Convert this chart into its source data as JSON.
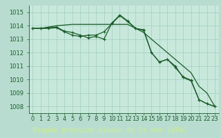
{
  "title": "Graphe pression niveau de la mer (hPa)",
  "hours": [
    0,
    1,
    2,
    3,
    4,
    5,
    6,
    7,
    8,
    9,
    10,
    11,
    12,
    13,
    14,
    15,
    16,
    17,
    18,
    19,
    20,
    21,
    22,
    23
  ],
  "line1": [
    1013.8,
    1013.8,
    1013.8,
    1013.85,
    1013.55,
    1013.3,
    1013.2,
    1013.3,
    1013.3,
    1013.55,
    1014.15,
    1014.75,
    1014.3,
    1013.8,
    1013.65,
    1012.0,
    1011.3,
    1011.5,
    1010.9,
    1010.2,
    1009.95,
    1008.5,
    1008.2,
    1008.0
  ],
  "line2": [
    1013.8,
    1013.8,
    1013.85,
    1013.9,
    1013.6,
    1013.5,
    1013.3,
    1013.1,
    1013.2,
    1013.0,
    1014.2,
    1014.8,
    1014.35,
    1013.8,
    1013.7,
    1012.0,
    1011.3,
    1011.5,
    1011.0,
    1010.15,
    1009.9,
    1008.5,
    1008.2,
    1008.0
  ],
  "line3_straight": [
    1013.8,
    1013.8,
    1013.9,
    1014.0,
    1014.05,
    1014.1,
    1014.1,
    1014.1,
    1014.1,
    1014.1,
    1014.1,
    1014.1,
    1014.1,
    1013.8,
    1013.5,
    1013.0,
    1012.5,
    1012.0,
    1011.5,
    1011.0,
    1010.5,
    1009.5,
    1009.0,
    1008.0
  ],
  "line1_has_markers": true,
  "line2_has_markers": true,
  "line3_has_markers": false,
  "ylim": [
    1007.5,
    1015.5
  ],
  "yticks": [
    1008,
    1009,
    1010,
    1011,
    1012,
    1013,
    1014,
    1015
  ],
  "bg_color": "#b8ddd0",
  "plot_bg_color": "#c8e8dc",
  "grid_color": "#9fcfbe",
  "line_color": "#1a5c28",
  "tick_label_color": "#1a5c28",
  "title_bg_color": "#4a7c4e",
  "title_fg_color": "#c8e8a0",
  "title_fontsize": 7.0,
  "tick_fontsize": 6.0
}
